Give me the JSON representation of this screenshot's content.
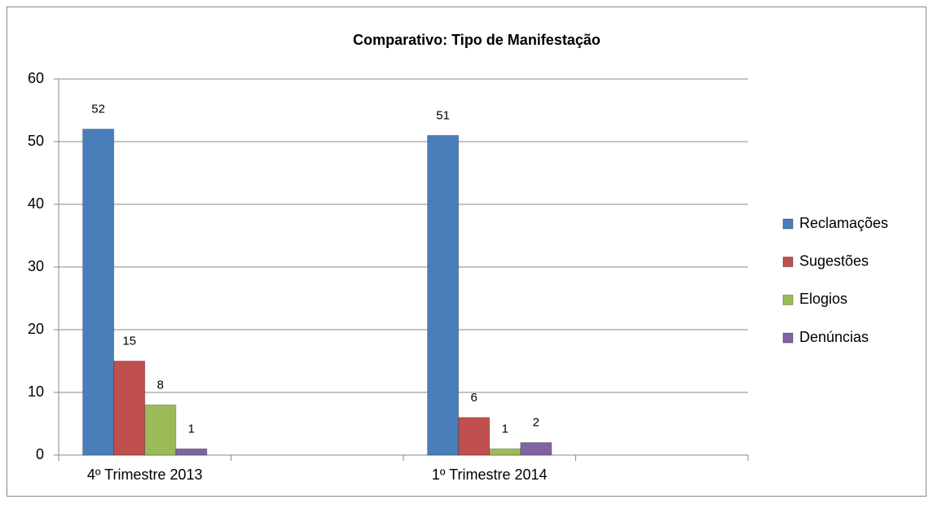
{
  "chart_data": {
    "type": "bar",
    "title": "Comparativo: Tipo de Manifestação",
    "categories": [
      "4º Trimestre 2013",
      null,
      "1º Trimestre 2014",
      null
    ],
    "series": [
      {
        "name": "Reclamações",
        "color": "#4a7ebb",
        "values": [
          52,
          null,
          51,
          null
        ]
      },
      {
        "name": "Sugestões",
        "color": "#c0504d",
        "values": [
          15,
          null,
          6,
          null
        ]
      },
      {
        "name": "Elogios",
        "color": "#9bbb59",
        "values": [
          8,
          null,
          1,
          null
        ]
      },
      {
        "name": "Denúncias",
        "color": "#8064a2",
        "values": [
          1,
          null,
          2,
          null
        ]
      }
    ],
    "ylim": [
      0,
      60
    ],
    "yticks": [
      0,
      10,
      20,
      30,
      40,
      50,
      60
    ],
    "grid": true,
    "legend": "right"
  }
}
